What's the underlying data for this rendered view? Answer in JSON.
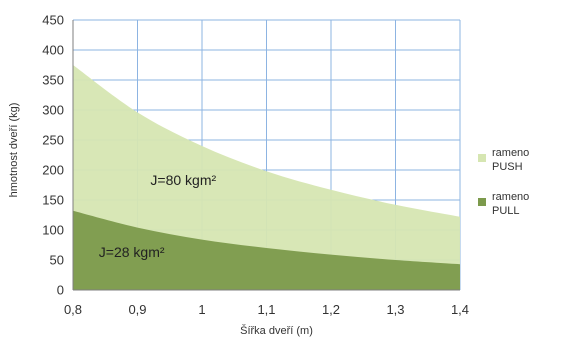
{
  "chart_data": {
    "type": "area",
    "title": "",
    "xlabel": "Šířka dveří (m)",
    "ylabel": "hmotnost dveří (kg)",
    "xlim": [
      0.8,
      1.4
    ],
    "ylim": [
      0,
      450
    ],
    "x_ticks": [
      "0,8",
      "0,9",
      "1",
      "1,1",
      "1,2",
      "1,3",
      "1,4"
    ],
    "y_ticks": [
      "0",
      "50",
      "100",
      "150",
      "200",
      "250",
      "300",
      "350",
      "400",
      "450"
    ],
    "grid": true,
    "legend_position": "right",
    "x": [
      0.8,
      0.9,
      1.0,
      1.1,
      1.2,
      1.3,
      1.4
    ],
    "series": [
      {
        "name": "rameno PUSH",
        "legend_lines": [
          "rameno",
          "PUSH"
        ],
        "color": "#d6e6b2",
        "values": [
          375,
          296,
          240,
          198,
          167,
          142,
          122
        ]
      },
      {
        "name": "rameno PULL",
        "legend_lines": [
          "rameno",
          "PULL"
        ],
        "color": "#7c9a4c",
        "values": [
          132,
          104,
          84,
          70,
          59,
          50,
          43
        ]
      }
    ],
    "annotations": [
      {
        "text": "J=80 kgm²",
        "x": 0.92,
        "y": 175
      },
      {
        "text": "J=28 kgm²",
        "x": 0.84,
        "y": 55
      }
    ]
  }
}
